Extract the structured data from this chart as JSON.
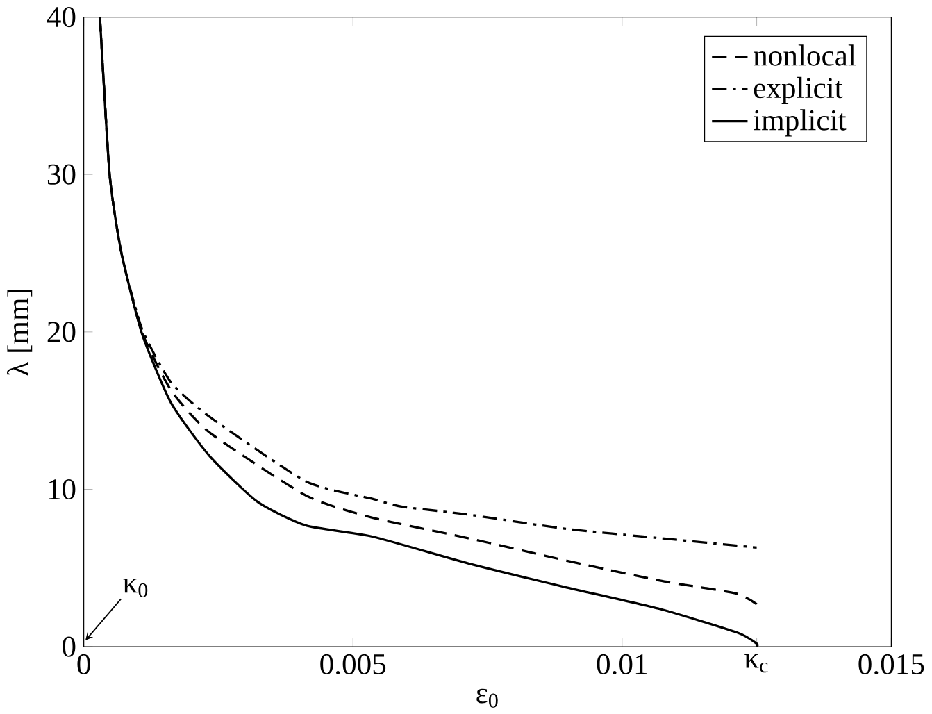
{
  "chart_data": {
    "type": "line",
    "xlabel": "ε$_{0}$",
    "ylabel": "λ [mm]",
    "xlim": [
      0,
      0.015
    ],
    "ylim": [
      0,
      40
    ],
    "xticks": [
      0,
      0.005,
      0.01,
      {
        "value": 0.0125,
        "label": "κ$_{c}$"
      },
      0.015
    ],
    "yticks": [
      0,
      10,
      20,
      30,
      40
    ],
    "legend": "top right",
    "grid": false,
    "annotations": [
      "κ$_{0}$"
    ],
    "series": [
      {
        "name": "nonlocal",
        "color": "#000000",
        "line_style": "dashed",
        "x": [
          0.0003,
          0.00048,
          0.0007,
          0.00108,
          0.00162,
          0.00234,
          0.00413,
          0.00536,
          0.00714,
          0.00893,
          0.0107,
          0.0121,
          0.0125
        ],
        "values": [
          40,
          30,
          25,
          20,
          16.3,
          13.6,
          9.6,
          8.2,
          6.9,
          5.5,
          4.2,
          3.4,
          2.7
        ]
      },
      {
        "name": "explicit",
        "color": "#000000",
        "line_style": "dashdot",
        "x": [
          0.0003,
          0.00048,
          0.0007,
          0.00108,
          0.00162,
          0.00234,
          0.00413,
          0.00536,
          0.0059,
          0.00714,
          0.00893,
          0.0107,
          0.0125
        ],
        "values": [
          40,
          30,
          25,
          20.2,
          16.8,
          14.6,
          10.5,
          9.4,
          8.9,
          8.4,
          7.5,
          6.9,
          6.3
        ]
      },
      {
        "name": "implicit",
        "color": "#000000",
        "line_style": "solid",
        "x": [
          0.0003,
          0.00048,
          0.0007,
          0.00108,
          0.00162,
          0.00234,
          0.00323,
          0.00413,
          0.00536,
          0.00714,
          0.00893,
          0.0107,
          0.01214,
          0.0125,
          0.0125
        ],
        "values": [
          40,
          30,
          25,
          19.9,
          15.5,
          12.1,
          9.2,
          7.7,
          7.0,
          5.3,
          3.8,
          2.4,
          0.9,
          0.2,
          0
        ]
      }
    ]
  }
}
